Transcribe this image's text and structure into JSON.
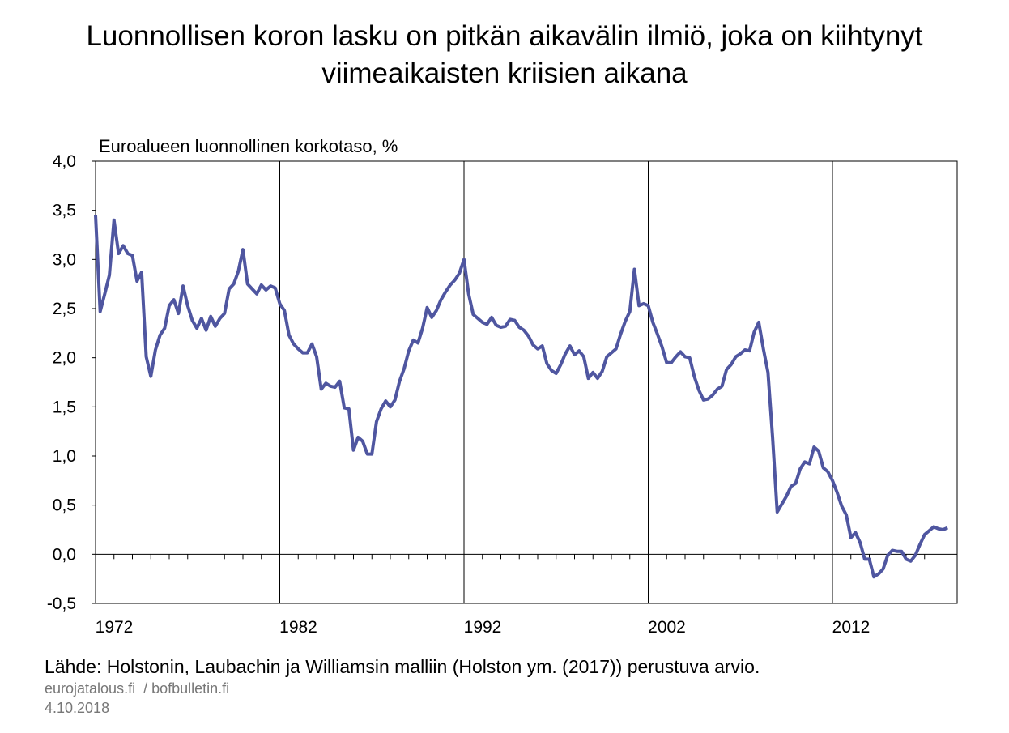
{
  "chart_data": {
    "type": "line",
    "title": "Luonnollisen koron lasku on pitkän aikavälin ilmiö, joka on kiihtynyt viimeaikaisten kriisien aikana",
    "y_label": "Euroalueen luonnollinen korkotaso, %",
    "source": "Lähde: Holstonin, Laubachin ja Williamsin malliin (Holston ym. (2017)) perustuva arvio.",
    "credit": "eurojatalous.fi  / bofbulletin.fi",
    "date": "4.10.2018",
    "grid": "x",
    "ylim": [
      -0.5,
      4.0
    ],
    "yticks": [
      {
        "value": -0.5,
        "label": "-0,5"
      },
      {
        "value": 0,
        "label": "0,0"
      },
      {
        "value": 0.5,
        "label": "0,5"
      },
      {
        "value": 1.0,
        "label": "1,0"
      },
      {
        "value": 1.5,
        "label": "1,5"
      },
      {
        "value": 2.0,
        "label": "2,0"
      },
      {
        "value": 2.5,
        "label": "2,5"
      },
      {
        "value": 3.0,
        "label": "3,0"
      },
      {
        "value": 3.5,
        "label": "3,5"
      },
      {
        "value": 4.0,
        "label": "4,0"
      }
    ],
    "categories": [
      "1972",
      null,
      null,
      null,
      null,
      null,
      null,
      null,
      null,
      null,
      null,
      null,
      null,
      null,
      null,
      null,
      null,
      null,
      null,
      null,
      null,
      null,
      null,
      null,
      null,
      null,
      null,
      null,
      null,
      null,
      null,
      null,
      null,
      null,
      null,
      null,
      null,
      null,
      null,
      null,
      "1982",
      null,
      null,
      null,
      null,
      null,
      null,
      null,
      null,
      null,
      null,
      null,
      null,
      null,
      null,
      null,
      null,
      null,
      null,
      null,
      null,
      null,
      null,
      null,
      null,
      null,
      null,
      null,
      null,
      null,
      null,
      null,
      null,
      null,
      null,
      null,
      null,
      null,
      null,
      null,
      "1992",
      null,
      null,
      null,
      null,
      null,
      null,
      null,
      null,
      null,
      null,
      null,
      null,
      null,
      null,
      null,
      null,
      null,
      null,
      null,
      null,
      null,
      null,
      null,
      null,
      null,
      null,
      null,
      null,
      null,
      null,
      null,
      null,
      null,
      null,
      null,
      null,
      null,
      null,
      null,
      "2002",
      null,
      null,
      null,
      null,
      null,
      null,
      null,
      null,
      null,
      null,
      null,
      null,
      null,
      null,
      null,
      null,
      null,
      null,
      null,
      null,
      null,
      null,
      null,
      null,
      null,
      null,
      null,
      null,
      null,
      null,
      null,
      null,
      null,
      null,
      null,
      null,
      null,
      null,
      null,
      "2012",
      null,
      null,
      null,
      null,
      null,
      null,
      null,
      null,
      null,
      null,
      null,
      null,
      null,
      null,
      null,
      null,
      null,
      null,
      null,
      null,
      null,
      null,
      null,
      null,
      null
    ],
    "series": [
      {
        "color": "#4f56a0",
        "values": [
          3.45,
          2.47,
          2.65,
          2.84,
          3.4,
          3.06,
          3.14,
          3.06,
          3.04,
          2.78,
          2.87,
          2.01,
          1.81,
          2.08,
          2.23,
          2.3,
          2.53,
          2.59,
          2.45,
          2.73,
          2.53,
          2.38,
          2.3,
          2.4,
          2.28,
          2.42,
          2.32,
          2.4,
          2.45,
          2.7,
          2.75,
          2.88,
          3.1,
          2.75,
          2.7,
          2.65,
          2.74,
          2.69,
          2.73,
          2.71,
          2.55,
          2.48,
          2.23,
          2.14,
          2.09,
          2.05,
          2.05,
          2.14,
          2.01,
          1.68,
          1.74,
          1.71,
          1.7,
          1.76,
          1.49,
          1.48,
          1.06,
          1.19,
          1.15,
          1.02,
          1.02,
          1.35,
          1.48,
          1.56,
          1.5,
          1.57,
          1.76,
          1.89,
          2.07,
          2.18,
          2.15,
          2.3,
          2.51,
          2.41,
          2.48,
          2.59,
          2.67,
          2.74,
          2.79,
          2.86,
          3.0,
          2.65,
          2.44,
          2.4,
          2.36,
          2.34,
          2.41,
          2.33,
          2.31,
          2.32,
          2.39,
          2.38,
          2.31,
          2.28,
          2.22,
          2.13,
          2.09,
          2.12,
          1.94,
          1.87,
          1.84,
          1.93,
          2.04,
          2.12,
          2.03,
          2.07,
          2.01,
          1.79,
          1.85,
          1.79,
          1.86,
          2.01,
          2.05,
          2.09,
          2.24,
          2.37,
          2.47,
          2.9,
          2.53,
          2.55,
          2.53,
          2.36,
          2.24,
          2.11,
          1.95,
          1.95,
          2.01,
          2.06,
          2.01,
          2.0,
          1.81,
          1.67,
          1.57,
          1.58,
          1.62,
          1.68,
          1.71,
          1.88,
          1.93,
          2.01,
          2.04,
          2.08,
          2.07,
          2.26,
          2.36,
          2.09,
          1.85,
          1.19,
          0.43,
          0.51,
          0.59,
          0.69,
          0.72,
          0.87,
          0.94,
          0.92,
          1.09,
          1.05,
          0.88,
          0.84,
          0.75,
          0.63,
          0.49,
          0.4,
          0.17,
          0.22,
          0.12,
          -0.05,
          -0.05,
          -0.23,
          -0.2,
          -0.15,
          -0.01,
          0.04,
          0.03,
          0.03,
          -0.05,
          -0.07,
          -0.01,
          0.1,
          0.2,
          0.24,
          0.28,
          0.26,
          0.25,
          0.27
        ]
      }
    ]
  }
}
